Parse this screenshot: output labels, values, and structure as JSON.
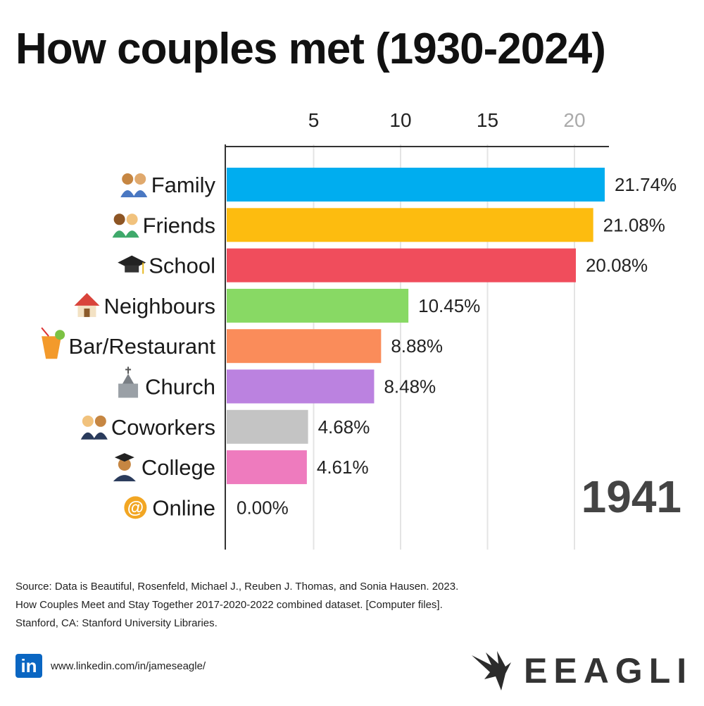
{
  "title": "How couples met (1930-2024)",
  "year": "1941",
  "source_lines": [
    "Source: Data is Beautiful, Rosenfeld, Michael J., Reuben J. Thomas, and Sonia Hausen. 2023.",
    "How Couples Meet and Stay Together 2017-2020-2022 combined dataset. [Computer files].",
    "Stanford, CA: Stanford University Libraries."
  ],
  "footer": {
    "linkedin_label": "in",
    "linkedin_url": "www.linkedin.com/in/jameseagle/",
    "brand": "EEAGLI"
  },
  "chart_data": {
    "type": "bar",
    "orientation": "horizontal",
    "axis_position": "top",
    "xlim": [
      0,
      22
    ],
    "xticks": [
      5,
      10,
      15,
      20
    ],
    "grid": true,
    "categories": [
      "Family",
      "Friends",
      "School",
      "Neighbours",
      "Bar/Restaurant",
      "Church",
      "Coworkers",
      "College",
      "Online"
    ],
    "icons": [
      "family-icon",
      "friends-icon",
      "graduation-cap-icon",
      "house-icon",
      "cocktail-icon",
      "church-icon",
      "coworkers-icon",
      "graduate-icon",
      "at-sign-icon"
    ],
    "values": [
      21.74,
      21.08,
      20.08,
      10.45,
      8.88,
      8.48,
      4.68,
      4.61,
      0.0
    ],
    "value_labels": [
      "21.74%",
      "21.08%",
      "20.08%",
      "10.45%",
      "8.88%",
      "8.48%",
      "4.68%",
      "4.61%",
      "0.00%"
    ],
    "colors": [
      "#00ADEF",
      "#FDBC0F",
      "#F04D5C",
      "#88D964",
      "#FA8C5A",
      "#BB82E0",
      "#C4C4C4",
      "#EE7BBE",
      "#888888"
    ]
  }
}
